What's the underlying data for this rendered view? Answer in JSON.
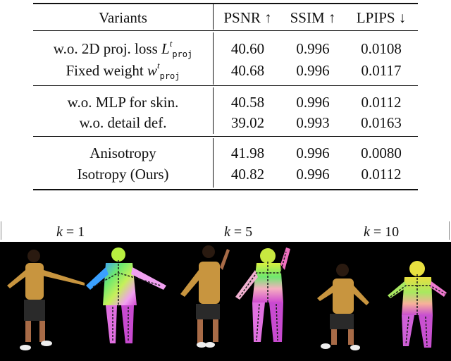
{
  "table": {
    "headers": {
      "variants": "Variants",
      "psnr": "PSNR ↑",
      "ssim": "SSIM ↑",
      "lpips": "LPIPS ↓"
    },
    "groups": [
      {
        "rows": [
          {
            "name_prefix": "w.o. 2D proj. loss ",
            "math_symbol": "L",
            "sup": "t",
            "sub": "proj",
            "psnr": "40.60",
            "ssim": "0.996",
            "lpips": "0.0108"
          },
          {
            "name_prefix": "Fixed weight ",
            "math_symbol": "w",
            "sup": "t",
            "sub": "proj",
            "psnr": "40.68",
            "ssim": "0.996",
            "lpips": "0.0117"
          }
        ]
      },
      {
        "rows": [
          {
            "name": "w.o. MLP for skin.",
            "psnr": "40.58",
            "ssim": "0.996",
            "lpips": "0.0112"
          },
          {
            "name": "w.o. detail def.",
            "psnr": "39.02",
            "ssim": "0.993",
            "lpips": "0.0163"
          }
        ]
      },
      {
        "rows": [
          {
            "name": "Anisotropy",
            "psnr": "41.98",
            "ssim": "0.996",
            "lpips": "0.0080"
          },
          {
            "name": "Isotropy (Ours)",
            "psnr": "40.82",
            "ssim": "0.996",
            "lpips": "0.0112"
          }
        ]
      }
    ]
  },
  "figure": {
    "labels": [
      {
        "var": "k",
        "eq": " = 1"
      },
      {
        "var": "k",
        "eq": " = 5"
      },
      {
        "var": "k",
        "eq": " = 10"
      }
    ],
    "colors": {
      "background": "#000000",
      "shirt": "#c8953f",
      "shorts": "#2a2a2a",
      "skin": "#a86b47",
      "skeleton": "#1a1a1a"
    }
  }
}
